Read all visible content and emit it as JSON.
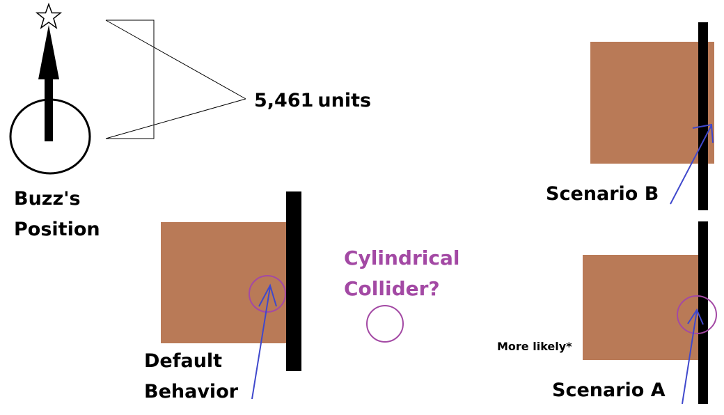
{
  "distance": {
    "value": "5,461",
    "unit": "units"
  },
  "buzz_label": {
    "line1": "Buzz's",
    "line2": "Position"
  },
  "default_label": {
    "line1": "Default",
    "line2": "Behavior"
  },
  "cylinder_label": {
    "line1": "Cylindrical",
    "line2": "Collider?"
  },
  "scenario_b_label": "Scenario B",
  "scenario_a_label": "Scenario A",
  "note": "More likely*",
  "colors": {
    "box": "#b97a57",
    "wall": "#000000",
    "arrow": "#3f48cc",
    "collider": "#a349a4",
    "text": "#000000"
  },
  "icons": [
    "star-icon",
    "up-arrow-icon"
  ]
}
